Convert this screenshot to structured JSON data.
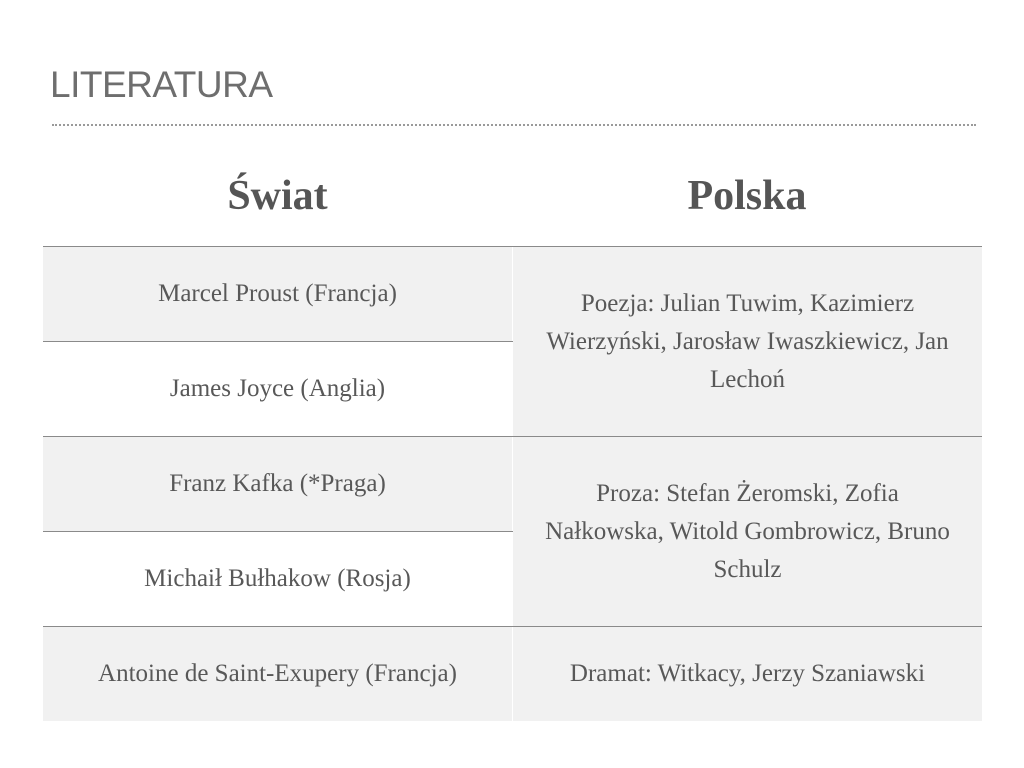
{
  "title": "LITERATURA",
  "table": {
    "headers": [
      "Świat",
      "Polska"
    ],
    "world": [
      "Marcel Proust (Francja)",
      "James Joyce (Anglia)",
      "Franz Kafka (*Praga)",
      "Michaił Bułhakow (Rosja)",
      "Antoine de Saint-Exupery (Francja)"
    ],
    "poland": [
      "Poezja: Julian Tuwim, Kazimierz Wierzyński, Jarosław Iwaszkiewicz, Jan Lechoń",
      "Proza: Stefan Żeromski, Zofia Nałkowska, Witold Gombrowicz, Bruno Schulz",
      "Dramat: Witkacy, Jerzy Szaniawski"
    ]
  },
  "colors": {
    "row_fill": "#f1f1f1",
    "text": "#585858",
    "rule": "#8a8a8a"
  }
}
